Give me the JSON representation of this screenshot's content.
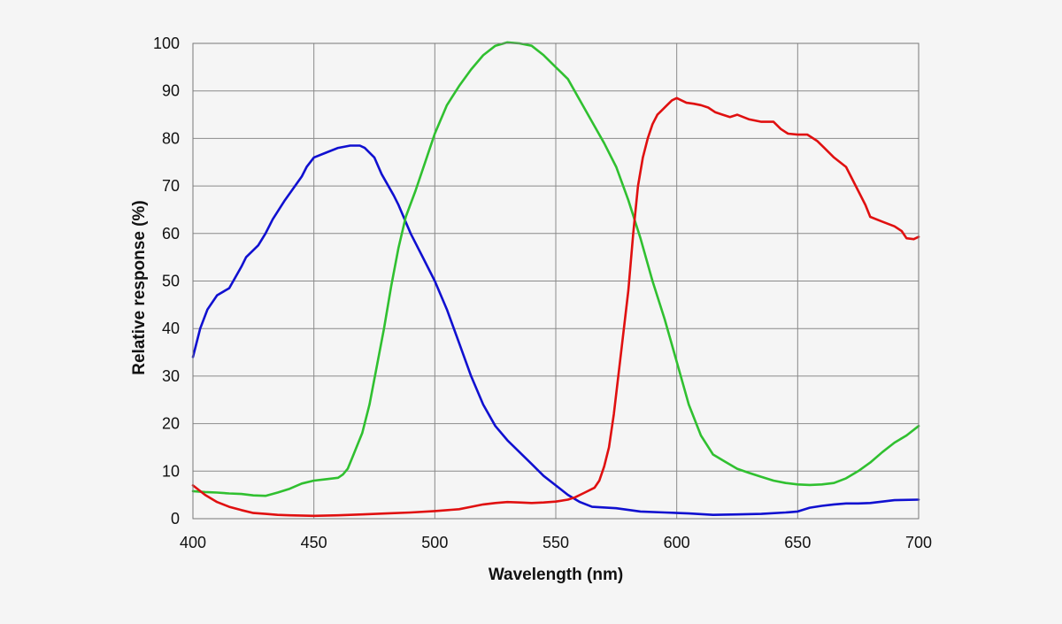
{
  "chart_data": {
    "type": "line",
    "title": "",
    "xlabel": "Wavelength (nm)",
    "ylabel": "Relative response (%)",
    "xlim": [
      400,
      700
    ],
    "ylim": [
      0,
      100
    ],
    "xticks": [
      "400",
      "450",
      "500",
      "550",
      "600",
      "650",
      "700"
    ],
    "yticks": [
      "0",
      "10",
      "20",
      "30",
      "40",
      "50",
      "60",
      "70",
      "80",
      "90",
      "100"
    ],
    "grid": true,
    "legend": "none",
    "series": [
      {
        "color": "#1010d0",
        "points": [
          [
            400,
            34
          ],
          [
            403,
            40
          ],
          [
            406,
            44
          ],
          [
            410,
            47
          ],
          [
            415,
            48.5
          ],
          [
            420,
            53
          ],
          [
            422,
            55
          ],
          [
            427,
            57.5
          ],
          [
            430,
            60
          ],
          [
            433,
            63
          ],
          [
            438,
            67
          ],
          [
            445,
            72
          ],
          [
            447,
            74
          ],
          [
            450,
            76
          ],
          [
            455,
            77
          ],
          [
            460,
            78
          ],
          [
            465,
            78.5
          ],
          [
            469,
            78.5
          ],
          [
            471,
            78
          ],
          [
            475,
            76
          ],
          [
            478,
            72.5
          ],
          [
            483,
            68
          ],
          [
            485,
            66
          ],
          [
            490,
            60
          ],
          [
            495,
            55
          ],
          [
            500,
            50
          ],
          [
            505,
            44
          ],
          [
            510,
            37
          ],
          [
            515,
            30
          ],
          [
            520,
            24
          ],
          [
            525,
            19.5
          ],
          [
            530,
            16.5
          ],
          [
            535,
            14
          ],
          [
            540,
            11.5
          ],
          [
            545,
            9
          ],
          [
            550,
            7
          ],
          [
            555,
            5
          ],
          [
            560,
            3.5
          ],
          [
            565,
            2.5
          ],
          [
            575,
            2.2
          ],
          [
            585,
            1.5
          ],
          [
            595,
            1.3
          ],
          [
            605,
            1.1
          ],
          [
            615,
            0.8
          ],
          [
            625,
            0.9
          ],
          [
            635,
            1
          ],
          [
            645,
            1.3
          ],
          [
            650,
            1.5
          ],
          [
            655,
            2.3
          ],
          [
            660,
            2.7
          ],
          [
            665,
            3
          ],
          [
            670,
            3.2
          ],
          [
            675,
            3.2
          ],
          [
            680,
            3.3
          ],
          [
            685,
            3.6
          ],
          [
            690,
            3.9
          ],
          [
            700,
            4
          ]
        ]
      },
      {
        "color": "#30c030",
        "points": [
          [
            400,
            5.8
          ],
          [
            405,
            5.6
          ],
          [
            410,
            5.5
          ],
          [
            415,
            5.3
          ],
          [
            420,
            5.2
          ],
          [
            425,
            4.9
          ],
          [
            430,
            4.8
          ],
          [
            435,
            5.5
          ],
          [
            440,
            6.3
          ],
          [
            445,
            7.4
          ],
          [
            450,
            8
          ],
          [
            455,
            8.3
          ],
          [
            460,
            8.6
          ],
          [
            462,
            9.3
          ],
          [
            464,
            10.5
          ],
          [
            466,
            13
          ],
          [
            470,
            18
          ],
          [
            473,
            24
          ],
          [
            476,
            32
          ],
          [
            479,
            40
          ],
          [
            482,
            49
          ],
          [
            485,
            57
          ],
          [
            488,
            63.5
          ],
          [
            492,
            69
          ],
          [
            496,
            75
          ],
          [
            500,
            81
          ],
          [
            505,
            87
          ],
          [
            510,
            91
          ],
          [
            515,
            94.5
          ],
          [
            520,
            97.5
          ],
          [
            525,
            99.5
          ],
          [
            530,
            100.2
          ],
          [
            535,
            100
          ],
          [
            540,
            99.5
          ],
          [
            545,
            97.5
          ],
          [
            550,
            95
          ],
          [
            555,
            92.5
          ],
          [
            560,
            88
          ],
          [
            565,
            83.5
          ],
          [
            570,
            79
          ],
          [
            575,
            74
          ],
          [
            580,
            67
          ],
          [
            585,
            59
          ],
          [
            590,
            50
          ],
          [
            595,
            42
          ],
          [
            600,
            33
          ],
          [
            605,
            24
          ],
          [
            610,
            17.5
          ],
          [
            615,
            13.5
          ],
          [
            620,
            12
          ],
          [
            625,
            10.5
          ],
          [
            630,
            9.6
          ],
          [
            635,
            8.8
          ],
          [
            640,
            8
          ],
          [
            645,
            7.5
          ],
          [
            650,
            7.2
          ],
          [
            655,
            7.1
          ],
          [
            660,
            7.2
          ],
          [
            665,
            7.5
          ],
          [
            670,
            8.5
          ],
          [
            675,
            10
          ],
          [
            680,
            11.8
          ],
          [
            685,
            14
          ],
          [
            690,
            16
          ],
          [
            695,
            17.5
          ],
          [
            700,
            19.5
          ]
        ]
      },
      {
        "color": "#e01010",
        "points": [
          [
            400,
            7
          ],
          [
            405,
            5
          ],
          [
            410,
            3.5
          ],
          [
            415,
            2.5
          ],
          [
            420,
            1.8
          ],
          [
            425,
            1.2
          ],
          [
            430,
            1
          ],
          [
            435,
            0.8
          ],
          [
            440,
            0.7
          ],
          [
            450,
            0.6
          ],
          [
            460,
            0.7
          ],
          [
            470,
            0.9
          ],
          [
            480,
            1.1
          ],
          [
            490,
            1.3
          ],
          [
            500,
            1.6
          ],
          [
            510,
            2
          ],
          [
            515,
            2.5
          ],
          [
            520,
            3
          ],
          [
            525,
            3.3
          ],
          [
            530,
            3.5
          ],
          [
            535,
            3.4
          ],
          [
            540,
            3.3
          ],
          [
            545,
            3.4
          ],
          [
            550,
            3.6
          ],
          [
            555,
            4
          ],
          [
            558,
            4.5
          ],
          [
            562,
            5.5
          ],
          [
            566,
            6.5
          ],
          [
            568,
            8
          ],
          [
            570,
            11
          ],
          [
            572,
            15
          ],
          [
            574,
            22
          ],
          [
            577,
            35
          ],
          [
            580,
            48
          ],
          [
            582,
            60
          ],
          [
            584,
            70
          ],
          [
            586,
            76
          ],
          [
            588,
            80
          ],
          [
            590,
            83
          ],
          [
            592,
            85
          ],
          [
            594,
            86
          ],
          [
            596,
            87
          ],
          [
            598,
            88
          ],
          [
            600,
            88.5
          ],
          [
            602,
            88
          ],
          [
            604,
            87.5
          ],
          [
            607,
            87.3
          ],
          [
            610,
            87
          ],
          [
            613,
            86.5
          ],
          [
            616,
            85.5
          ],
          [
            619,
            85
          ],
          [
            622,
            84.5
          ],
          [
            625,
            85
          ],
          [
            630,
            84
          ],
          [
            635,
            83.5
          ],
          [
            640,
            83.5
          ],
          [
            643,
            82
          ],
          [
            646,
            81
          ],
          [
            650,
            80.8
          ],
          [
            654,
            80.8
          ],
          [
            658,
            79.5
          ],
          [
            661,
            78
          ],
          [
            665,
            76
          ],
          [
            670,
            74
          ],
          [
            675,
            69
          ],
          [
            678,
            66
          ],
          [
            680,
            63.5
          ],
          [
            685,
            62.5
          ],
          [
            690,
            61.5
          ],
          [
            693,
            60.5
          ],
          [
            695,
            59
          ],
          [
            698,
            58.8
          ],
          [
            700,
            59.3
          ]
        ]
      }
    ]
  }
}
